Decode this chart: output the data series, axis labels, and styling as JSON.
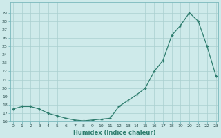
{
  "x_data": [
    0,
    1,
    2,
    3,
    4,
    5,
    6,
    7,
    8,
    9,
    10,
    11,
    12,
    13,
    14,
    15,
    16,
    17,
    18,
    19,
    20,
    21,
    22,
    23
  ],
  "y_data": [
    17.5,
    17.8,
    17.8,
    17.5,
    17.0,
    16.7,
    16.4,
    16.2,
    16.1,
    16.2,
    16.3,
    16.4,
    17.8,
    18.5,
    19.2,
    20.0,
    22.0,
    23.3,
    26.3,
    27.5,
    29.0,
    28.0,
    25.0,
    21.5
  ],
  "xlabel": "Humidex (Indice chaleur)",
  "line_color": "#2e7d6e",
  "bg_color": "#ceeaea",
  "grid_color": "#aacfcf",
  "ylim": [
    16,
    30
  ],
  "xlim": [
    -0.3,
    23.3
  ],
  "yticks": [
    16,
    17,
    18,
    19,
    20,
    21,
    22,
    23,
    24,
    25,
    26,
    27,
    28,
    29
  ],
  "xticks": [
    0,
    1,
    2,
    3,
    4,
    5,
    6,
    7,
    8,
    9,
    10,
    11,
    12,
    13,
    14,
    15,
    16,
    17,
    18,
    19,
    20,
    21,
    22,
    23
  ]
}
